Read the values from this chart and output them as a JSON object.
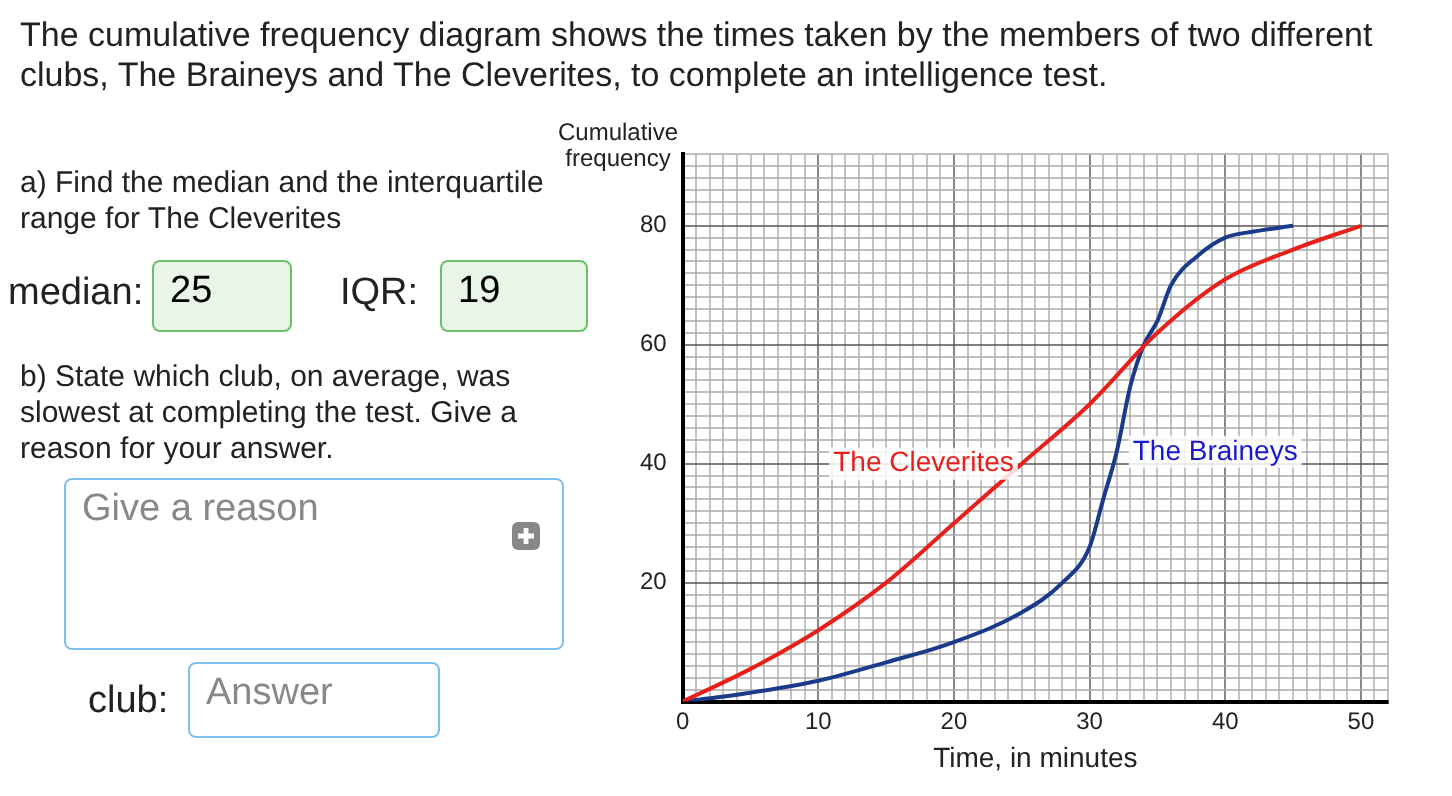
{
  "chart_data": {
    "type": "line",
    "title": "The cumulative frequency diagram shows the times taken by the members of two different clubs, The Braineys and The Cleverites, to complete an intelligence test.",
    "xlabel": "Time, in minutes",
    "ylabel": "Cumulative frequency",
    "annotations": [
      "a) Find the median and the interquartile range for The Cleverites",
      "median:",
      "25",
      "IQR:",
      "19",
      "b) State which club, on average, was slowest at completing the test. Give a reason for your answer.",
      "Give a reason",
      "club:",
      "Answer"
    ],
    "series": [
      {
        "name": "The Cleverites",
        "color": "#e8201c",
        "x": [
          0,
          5,
          10,
          15,
          20,
          25,
          30,
          35,
          40,
          45,
          50
        ],
        "values": [
          0,
          5.5,
          12,
          20,
          30,
          40,
          50,
          62,
          71,
          76,
          80
        ]
      },
      {
        "name": "The Braineys",
        "color": "#1a3a8a",
        "x": [
          0,
          5,
          10,
          15,
          20,
          25,
          28,
          30,
          31,
          32,
          33,
          34,
          35,
          36,
          38,
          40,
          42,
          45
        ],
        "values": [
          0,
          1.5,
          3.5,
          6.6,
          10,
          15,
          20,
          26,
          34,
          42,
          53,
          60,
          64,
          70,
          75,
          78,
          79,
          80
        ]
      }
    ],
    "xlim": [
      0,
      52
    ],
    "ylim": [
      0,
      92
    ],
    "xticks": [
      0,
      {
        "value": 1,
        "label": null
      },
      {
        "value": 2,
        "label": null
      },
      {
        "value": 3,
        "label": null
      },
      {
        "value": 4,
        "label": null
      },
      {
        "value": 5,
        "label": null
      },
      {
        "value": 6,
        "label": null
      },
      {
        "value": 7,
        "label": null
      },
      {
        "value": 8,
        "label": null
      },
      {
        "value": 9,
        "label": null
      },
      10,
      {
        "value": 11,
        "label": null
      },
      {
        "value": 12,
        "label": null
      },
      {
        "value": 13,
        "label": null
      },
      {
        "value": 14,
        "label": null
      },
      {
        "value": 15,
        "label": null
      },
      {
        "value": 16,
        "label": null
      },
      {
        "value": 17,
        "label": null
      },
      {
        "value": 18,
        "label": null
      },
      {
        "value": 19,
        "label": null
      },
      20,
      {
        "value": 21,
        "label": null
      },
      {
        "value": 22,
        "label": null
      },
      {
        "value": 23,
        "label": null
      },
      {
        "value": 24,
        "label": null
      },
      {
        "value": 25,
        "label": null
      },
      {
        "value": 26,
        "label": null
      },
      {
        "value": 27,
        "label": null
      },
      {
        "value": 28,
        "label": null
      },
      {
        "value": 29,
        "label": null
      },
      30,
      {
        "value": 31,
        "label": null
      },
      {
        "value": 32,
        "label": null
      },
      {
        "value": 33,
        "label": null
      },
      {
        "value": 34,
        "label": null
      },
      {
        "value": 35,
        "label": null
      },
      {
        "value": 36,
        "label": null
      },
      {
        "value": 37,
        "label": null
      },
      {
        "value": 38,
        "label": null
      },
      {
        "value": 39,
        "label": null
      },
      40,
      {
        "value": 41,
        "label": null
      },
      {
        "value": 42,
        "label": null
      },
      {
        "value": 43,
        "label": null
      },
      {
        "value": 44,
        "label": null
      },
      {
        "value": 45,
        "label": null
      },
      {
        "value": 46,
        "label": null
      },
      {
        "value": 47,
        "label": null
      },
      {
        "value": 48,
        "label": null
      },
      {
        "value": 49,
        "label": null
      },
      50,
      {
        "value": 51,
        "label": null
      },
      {
        "value": 52,
        "label": null
      }
    ],
    "yticks": [
      {
        "value": 0,
        "label": null
      },
      {
        "value": 2,
        "label": null
      },
      {
        "value": 4,
        "label": null
      },
      {
        "value": 6,
        "label": null
      },
      {
        "value": 8,
        "label": null
      },
      {
        "value": 10,
        "label": null
      },
      {
        "value": 12,
        "label": null
      },
      {
        "value": 14,
        "label": null
      },
      {
        "value": 16,
        "label": null
      },
      {
        "value": 18,
        "label": null
      },
      20,
      {
        "value": 22,
        "label": null
      },
      {
        "value": 24,
        "label": null
      },
      {
        "value": 26,
        "label": null
      },
      {
        "value": 28,
        "label": null
      },
      {
        "value": 30,
        "label": null
      },
      {
        "value": 32,
        "label": null
      },
      {
        "value": 34,
        "label": null
      },
      {
        "value": 36,
        "label": null
      },
      {
        "value": 38,
        "label": null
      },
      40,
      {
        "value": 42,
        "label": null
      },
      {
        "value": 44,
        "label": null
      },
      {
        "value": 46,
        "label": null
      },
      {
        "value": 48,
        "label": null
      },
      {
        "value": 50,
        "label": null
      },
      {
        "value": 52,
        "label": null
      },
      {
        "value": 54,
        "label": null
      },
      {
        "value": 56,
        "label": null
      },
      {
        "value": 58,
        "label": null
      },
      60,
      {
        "value": 62,
        "label": null
      },
      {
        "value": 64,
        "label": null
      },
      {
        "value": 66,
        "label": null
      },
      {
        "value": 68,
        "label": null
      },
      {
        "value": 70,
        "label": null
      },
      {
        "value": 72,
        "label": null
      },
      {
        "value": 74,
        "label": null
      },
      {
        "value": 76,
        "label": null
      },
      {
        "value": 78,
        "label": null
      },
      80,
      {
        "value": 82,
        "label": null
      },
      {
        "value": 84,
        "label": null
      },
      {
        "value": 86,
        "label": null
      },
      {
        "value": 88,
        "label": null
      },
      {
        "value": 90,
        "label": null
      },
      {
        "value": 92,
        "label": null
      }
    ],
    "grid": true,
    "legend": false,
    "marker": "none",
    "line_style": "solid"
  }
}
